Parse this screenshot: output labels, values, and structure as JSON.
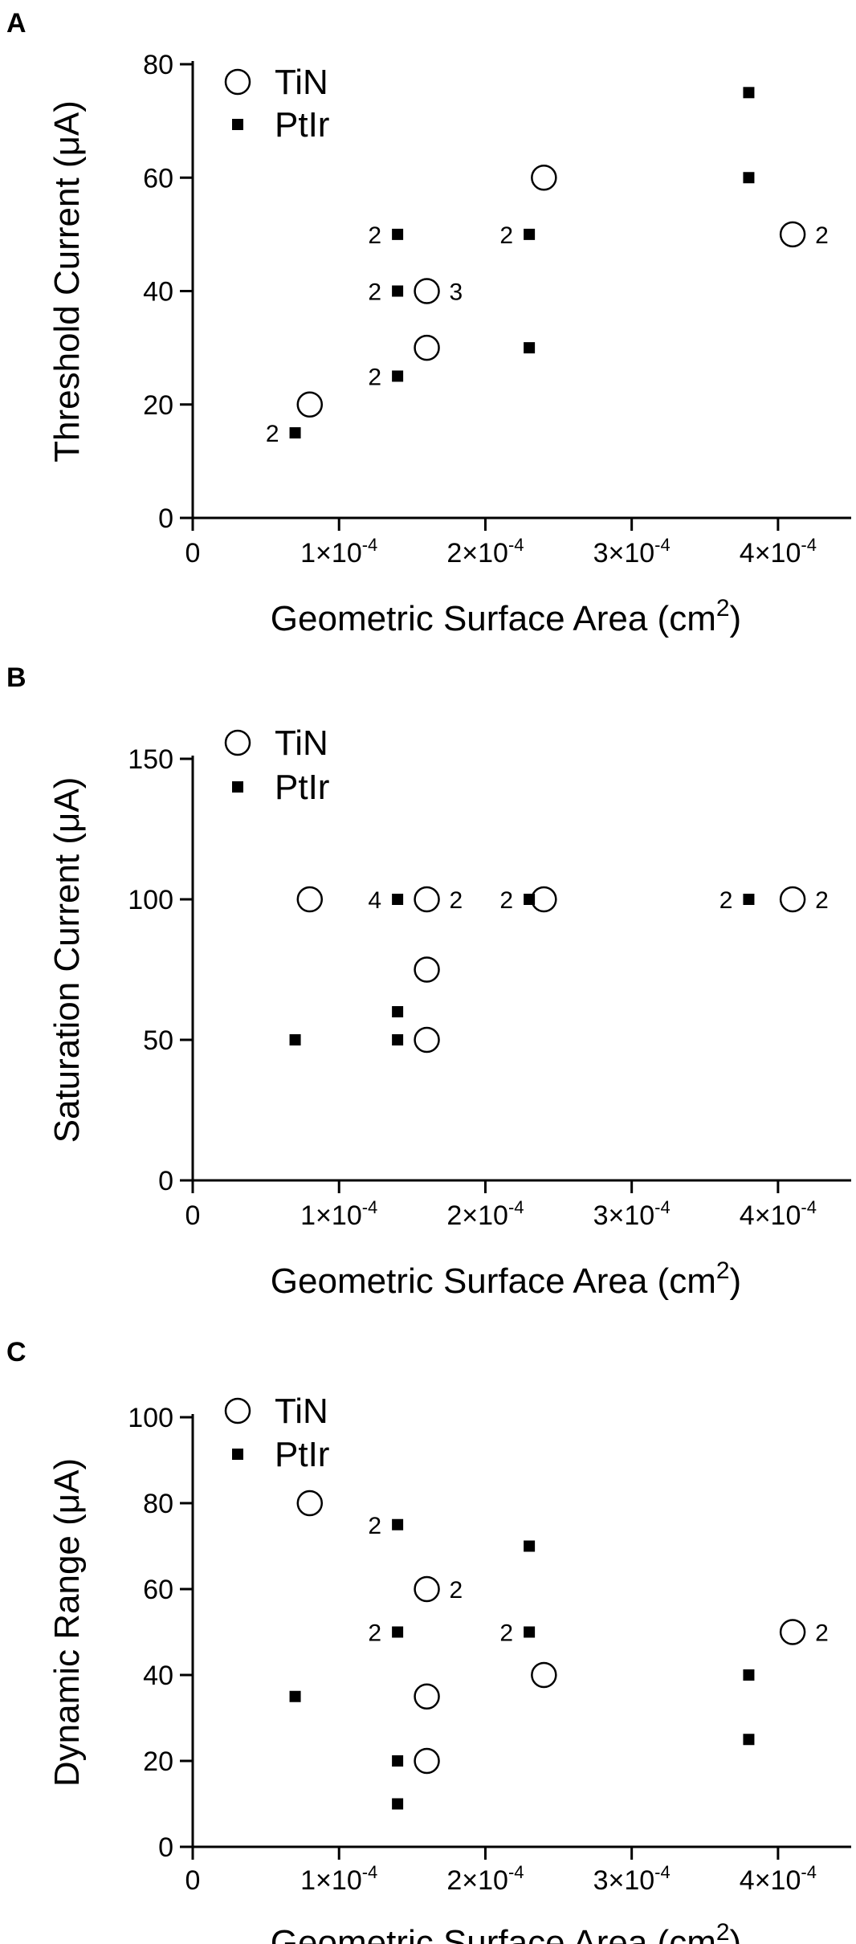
{
  "chart_data": [
    {
      "panel": "A",
      "type": "scatter",
      "xlabel": "Geometric Surface Area (cm",
      "xlabel_sup": "2",
      "xlabel_close": ")",
      "ylabel": "Threshold Current (μA)",
      "xlim": [
        0,
        0.00045
      ],
      "ylim": [
        0,
        80
      ],
      "x_ticks": [
        {
          "value": 0,
          "label": "0"
        },
        {
          "value": 0.0001,
          "label": "1×10",
          "exp": "-4"
        },
        {
          "value": 0.0002,
          "label": "2×10",
          "exp": "-4"
        },
        {
          "value": 0.0003,
          "label": "3×10",
          "exp": "-4"
        },
        {
          "value": 0.0004,
          "label": "4×10",
          "exp": "-4"
        }
      ],
      "y_ticks": [
        {
          "value": 0,
          "label": "0"
        },
        {
          "value": 20,
          "label": "20"
        },
        {
          "value": 40,
          "label": "40"
        },
        {
          "value": 60,
          "label": "60"
        },
        {
          "value": 80,
          "label": "80"
        }
      ],
      "legend": [
        "TiN",
        "PtIr"
      ],
      "series": [
        {
          "name": "TiN",
          "marker": "open-circle",
          "points": [
            {
              "x": 8e-05,
              "y": 20
            },
            {
              "x": 0.00016,
              "y": 30
            },
            {
              "x": 0.00016,
              "y": 40,
              "count": "3",
              "label_side": "right"
            },
            {
              "x": 0.00024,
              "y": 60
            },
            {
              "x": 0.00041,
              "y": 50,
              "count": "2",
              "label_side": "right"
            }
          ]
        },
        {
          "name": "PtIr",
          "marker": "filled-square",
          "points": [
            {
              "x": 7e-05,
              "y": 15,
              "count": "2",
              "label_side": "left"
            },
            {
              "x": 0.00014,
              "y": 25,
              "count": "2",
              "label_side": "left"
            },
            {
              "x": 0.00014,
              "y": 40,
              "count": "2",
              "label_side": "left"
            },
            {
              "x": 0.00014,
              "y": 50,
              "count": "2",
              "label_side": "left"
            },
            {
              "x": 0.00023,
              "y": 30
            },
            {
              "x": 0.00023,
              "y": 50,
              "count": "2",
              "label_side": "left"
            },
            {
              "x": 0.00038,
              "y": 60
            },
            {
              "x": 0.00038,
              "y": 75
            }
          ]
        }
      ]
    },
    {
      "panel": "B",
      "type": "scatter",
      "xlabel": "Geometric Surface Area (cm",
      "xlabel_sup": "2",
      "xlabel_close": ")",
      "ylabel": "Saturation Current (μA)",
      "xlim": [
        0,
        0.00045
      ],
      "ylim": [
        0,
        150
      ],
      "x_ticks": [
        {
          "value": 0,
          "label": "0"
        },
        {
          "value": 0.0001,
          "label": "1×10",
          "exp": "-4"
        },
        {
          "value": 0.0002,
          "label": "2×10",
          "exp": "-4"
        },
        {
          "value": 0.0003,
          "label": "3×10",
          "exp": "-4"
        },
        {
          "value": 0.0004,
          "label": "4×10",
          "exp": "-4"
        }
      ],
      "y_ticks": [
        {
          "value": 0,
          "label": "0"
        },
        {
          "value": 50,
          "label": "50"
        },
        {
          "value": 100,
          "label": "100"
        },
        {
          "value": 150,
          "label": "150"
        }
      ],
      "legend": [
        "TiN",
        "PtIr"
      ],
      "series": [
        {
          "name": "TiN",
          "marker": "open-circle",
          "points": [
            {
              "x": 8e-05,
              "y": 100
            },
            {
              "x": 0.00016,
              "y": 100,
              "count": "2",
              "label_side": "right"
            },
            {
              "x": 0.00016,
              "y": 75
            },
            {
              "x": 0.00016,
              "y": 50
            },
            {
              "x": 0.00024,
              "y": 100
            },
            {
              "x": 0.00041,
              "y": 100,
              "count": "2",
              "label_side": "right"
            }
          ]
        },
        {
          "name": "PtIr",
          "marker": "filled-square",
          "points": [
            {
              "x": 7e-05,
              "y": 50
            },
            {
              "x": 0.00014,
              "y": 100,
              "count": "4",
              "label_side": "left"
            },
            {
              "x": 0.00014,
              "y": 60
            },
            {
              "x": 0.00014,
              "y": 50
            },
            {
              "x": 0.00023,
              "y": 100,
              "count": "2",
              "label_side": "left"
            },
            {
              "x": 0.00038,
              "y": 100,
              "count": "2",
              "label_side": "left"
            }
          ]
        }
      ]
    },
    {
      "panel": "C",
      "type": "scatter",
      "xlabel": "Geometric Surface Area (cm",
      "xlabel_sup": "2",
      "xlabel_close": ")",
      "ylabel": "Dynamic Range (μA)",
      "xlim": [
        0,
        0.00045
      ],
      "ylim": [
        0,
        100
      ],
      "x_ticks": [
        {
          "value": 0,
          "label": "0"
        },
        {
          "value": 0.0001,
          "label": "1×10",
          "exp": "-4"
        },
        {
          "value": 0.0002,
          "label": "2×10",
          "exp": "-4"
        },
        {
          "value": 0.0003,
          "label": "3×10",
          "exp": "-4"
        },
        {
          "value": 0.0004,
          "label": "4×10",
          "exp": "-4"
        }
      ],
      "y_ticks": [
        {
          "value": 0,
          "label": "0"
        },
        {
          "value": 20,
          "label": "20"
        },
        {
          "value": 40,
          "label": "40"
        },
        {
          "value": 60,
          "label": "60"
        },
        {
          "value": 80,
          "label": "80"
        },
        {
          "value": 100,
          "label": "100"
        }
      ],
      "legend": [
        "TiN",
        "PtIr"
      ],
      "series": [
        {
          "name": "TiN",
          "marker": "open-circle",
          "points": [
            {
              "x": 8e-05,
              "y": 80
            },
            {
              "x": 0.00016,
              "y": 60,
              "count": "2",
              "label_side": "right"
            },
            {
              "x": 0.00016,
              "y": 35
            },
            {
              "x": 0.00016,
              "y": 20
            },
            {
              "x": 0.00024,
              "y": 40
            },
            {
              "x": 0.00041,
              "y": 50,
              "count": "2",
              "label_side": "right"
            }
          ]
        },
        {
          "name": "PtIr",
          "marker": "filled-square",
          "points": [
            {
              "x": 7e-05,
              "y": 35
            },
            {
              "x": 0.00014,
              "y": 75,
              "count": "2",
              "label_side": "left"
            },
            {
              "x": 0.00014,
              "y": 50,
              "count": "2",
              "label_side": "left"
            },
            {
              "x": 0.00014,
              "y": 20
            },
            {
              "x": 0.00014,
              "y": 10
            },
            {
              "x": 0.00023,
              "y": 70
            },
            {
              "x": 0.00023,
              "y": 50,
              "count": "2",
              "label_side": "left"
            },
            {
              "x": 0.00038,
              "y": 40
            },
            {
              "x": 0.00038,
              "y": 25
            }
          ]
        }
      ]
    }
  ]
}
